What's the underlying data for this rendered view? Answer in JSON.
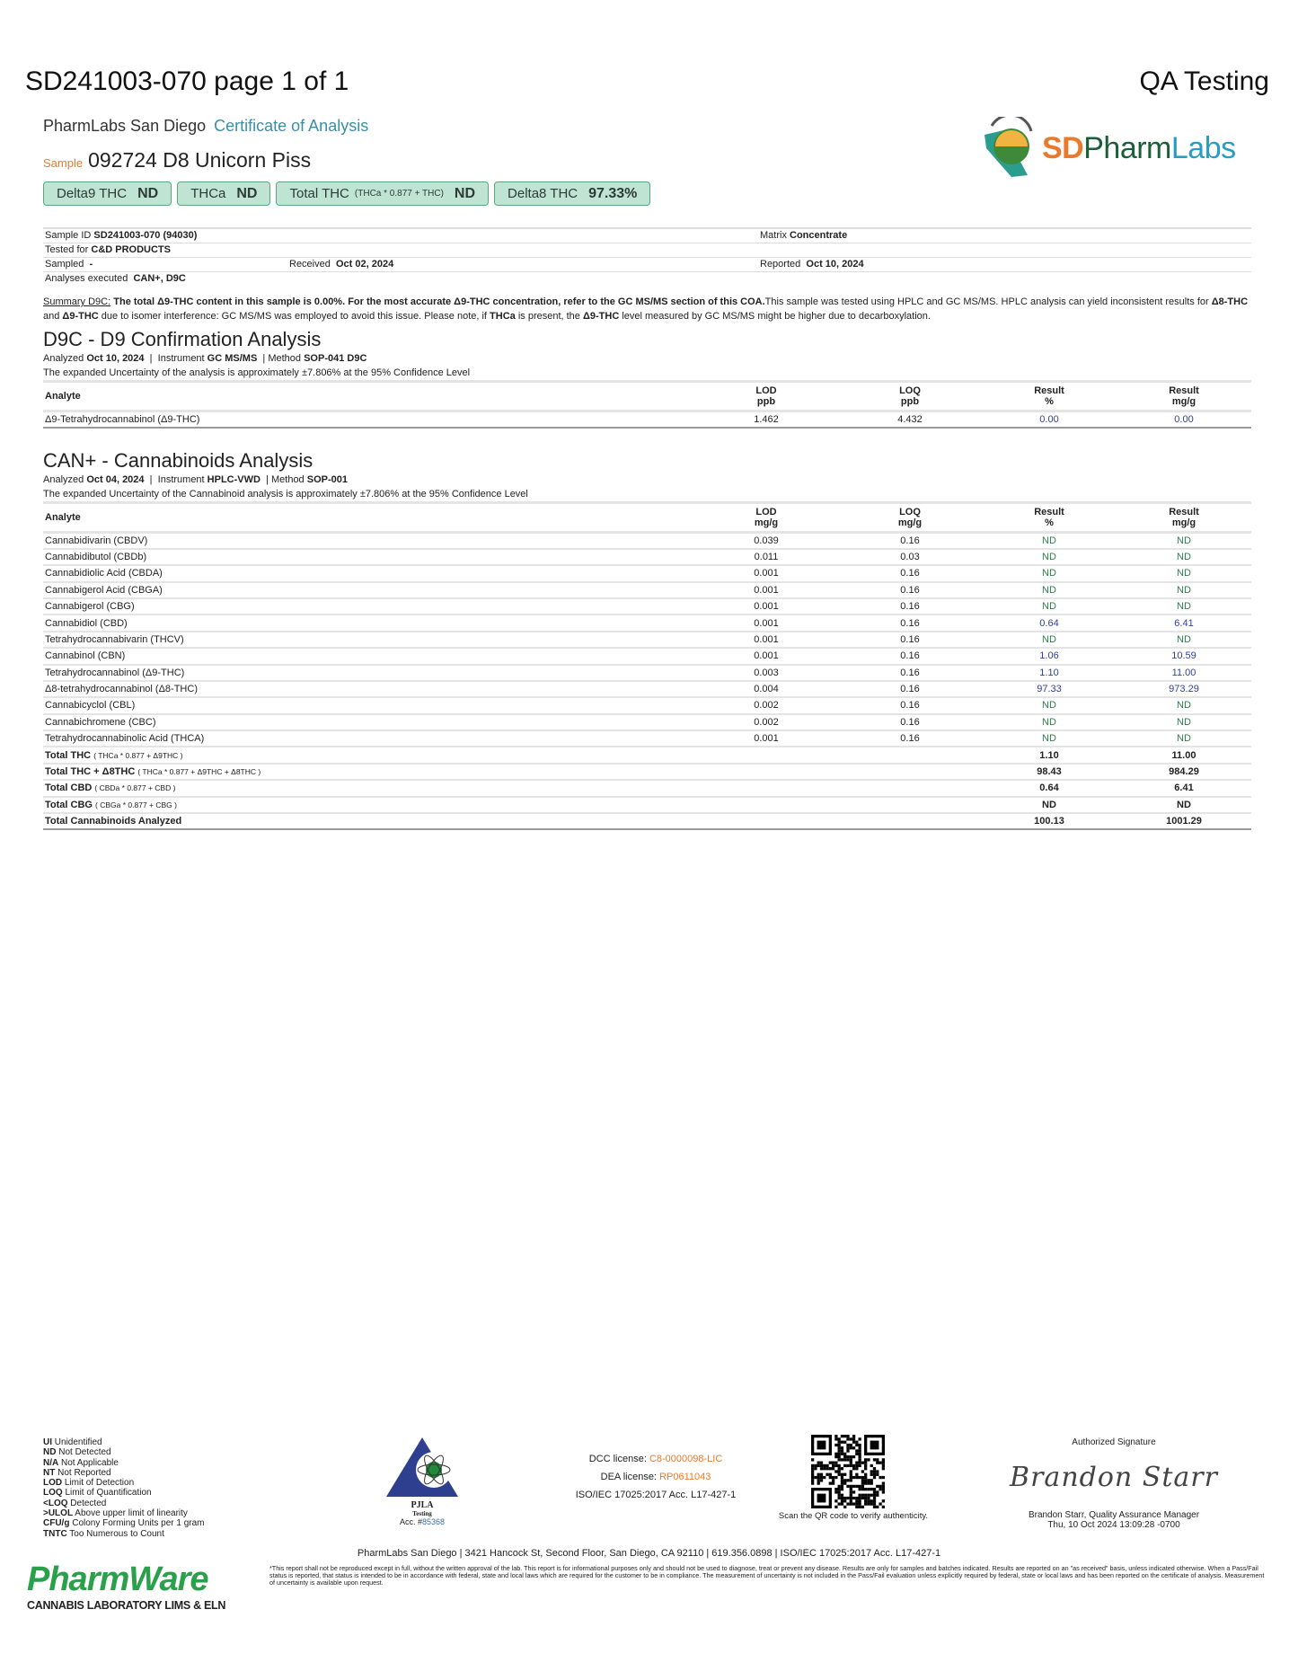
{
  "header": {
    "doc_title": "SD241003-070 page 1 of 1",
    "qa_label": "QA Testing"
  },
  "lab": {
    "name": "PharmLabs San Diego",
    "coa": "Certificate of Analysis",
    "logo_text": "SDPharmLabs",
    "logo_sd": "SD",
    "logo_pharm": "Pharm",
    "logo_labs": "Labs"
  },
  "sample": {
    "label": "Sample",
    "name": "092724 D8 Unicorn Piss"
  },
  "badges": [
    {
      "label": "Delta9 THC",
      "formula": "",
      "value": "ND"
    },
    {
      "label": "THCa",
      "formula": "",
      "value": "ND"
    },
    {
      "label": "Total THC",
      "formula": "(THCa * 0.877 + THC)",
      "value": "ND"
    },
    {
      "label": "Delta8 THC",
      "formula": "",
      "value": "97.33%"
    }
  ],
  "info": {
    "sample_id_label": "Sample ID",
    "sample_id": "SD241003-070 (94030)",
    "matrix_label": "Matrix",
    "matrix": "Concentrate",
    "tested_for_label": "Tested for",
    "tested_for": "C&D PRODUCTS",
    "sampled_label": "Sampled",
    "sampled": "-",
    "received_label": "Received",
    "received": "Oct 02, 2024",
    "reported_label": "Reported",
    "reported": "Oct 10, 2024",
    "analyses_label": "Analyses executed",
    "analyses": "CAN+, D9C"
  },
  "summary": {
    "label": "Summary D9C:",
    "bold": "The total Δ9-THC content in this sample is 0.00%. For the most accurate Δ9-THC concentration, refer to the GC MS/MS section of this COA.",
    "text1": "This sample was tested using HPLC and GC MS/MS. HPLC analysis can yield inconsistent results for ",
    "b1": "Δ8-THC",
    "t2": " and ",
    "b2": "Δ9-THC",
    "t3": " due to isomer interference: GC MS/MS was employed to avoid this issue. Please note, if ",
    "b3": "THCa",
    "t4": " is present, the ",
    "b4": "Δ9-THC",
    "t5": " level measured by GC MS/MS might be higher due to decarboxylation."
  },
  "d9c": {
    "title": "D9C - D9 Confirmation Analysis",
    "analyzed_label": "Analyzed",
    "analyzed": "Oct 10, 2024",
    "instrument_label": "Instrument",
    "instrument": "GC MS/MS",
    "method_label": "Method",
    "method": "SOP-041 D9C",
    "uncertainty": "The expanded Uncertainty of the analysis is approximately ±7.806% at the 95% Confidence Level",
    "headers": [
      "Analyte",
      "LOD\nppb",
      "LOQ\nppb",
      "Result\n%",
      "Result\nmg/g"
    ],
    "rows": [
      {
        "analyte": "Δ9-Tetrahydrocannabinol (Δ9-THC)",
        "lod": "1.462",
        "loq": "4.432",
        "pct": "0.00",
        "mg": "0.00"
      }
    ]
  },
  "can": {
    "title": "CAN+ - Cannabinoids Analysis",
    "analyzed_label": "Analyzed",
    "analyzed": "Oct 04, 2024",
    "instrument_label": "Instrument",
    "instrument": "HPLC-VWD",
    "method_label": "Method",
    "method": "SOP-001",
    "uncertainty": "The expanded Uncertainty of the Cannabinoid analysis is approximately ±7.806% at the 95% Confidence Level",
    "headers": [
      "Analyte",
      "LOD\nmg/g",
      "LOQ\nmg/g",
      "Result\n%",
      "Result\nmg/g"
    ],
    "rows": [
      {
        "analyte": "Cannabidivarin (CBDV)",
        "lod": "0.039",
        "loq": "0.16",
        "pct": "ND",
        "mg": "ND"
      },
      {
        "analyte": "Cannabidibutol (CBDb)",
        "lod": "0.011",
        "loq": "0.03",
        "pct": "ND",
        "mg": "ND"
      },
      {
        "analyte": "Cannabidiolic Acid (CBDA)",
        "lod": "0.001",
        "loq": "0.16",
        "pct": "ND",
        "mg": "ND"
      },
      {
        "analyte": "Cannabigerol Acid (CBGA)",
        "lod": "0.001",
        "loq": "0.16",
        "pct": "ND",
        "mg": "ND"
      },
      {
        "analyte": "Cannabigerol (CBG)",
        "lod": "0.001",
        "loq": "0.16",
        "pct": "ND",
        "mg": "ND"
      },
      {
        "analyte": "Cannabidiol (CBD)",
        "lod": "0.001",
        "loq": "0.16",
        "pct": "0.64",
        "mg": "6.41"
      },
      {
        "analyte": "Tetrahydrocannabivarin (THCV)",
        "lod": "0.001",
        "loq": "0.16",
        "pct": "ND",
        "mg": "ND"
      },
      {
        "analyte": "Cannabinol (CBN)",
        "lod": "0.001",
        "loq": "0.16",
        "pct": "1.06",
        "mg": "10.59"
      },
      {
        "analyte": "Tetrahydrocannabinol (Δ9-THC)",
        "lod": "0.003",
        "loq": "0.16",
        "pct": "1.10",
        "mg": "11.00"
      },
      {
        "analyte": "Δ8-tetrahydrocannabinol (Δ8-THC)",
        "lod": "0.004",
        "loq": "0.16",
        "pct": "97.33",
        "mg": "973.29"
      },
      {
        "analyte": "Cannabicyclol (CBL)",
        "lod": "0.002",
        "loq": "0.16",
        "pct": "ND",
        "mg": "ND"
      },
      {
        "analyte": "Cannabichromene (CBC)",
        "lod": "0.002",
        "loq": "0.16",
        "pct": "ND",
        "mg": "ND"
      },
      {
        "analyte": "Tetrahydrocannabinolic Acid (THCA)",
        "lod": "0.001",
        "loq": "0.16",
        "pct": "ND",
        "mg": "ND"
      }
    ],
    "totals": [
      {
        "label": "Total THC",
        "formula": "( THCa * 0.877 + Δ9THC )",
        "pct": "1.10",
        "mg": "11.00"
      },
      {
        "label": "Total THC + Δ8THC",
        "formula": "( THCa * 0.877 + Δ9THC + Δ8THC )",
        "pct": "98.43",
        "mg": "984.29"
      },
      {
        "label": "Total CBD",
        "formula": "( CBDa * 0.877 + CBD )",
        "pct": "0.64",
        "mg": "6.41"
      },
      {
        "label": "Total CBG",
        "formula": "( CBGa * 0.877 + CBG )",
        "pct": "ND",
        "mg": "ND"
      },
      {
        "label": "Total Cannabinoids Analyzed",
        "formula": "",
        "pct": "100.13",
        "mg": "1001.29"
      }
    ]
  },
  "legend": [
    {
      "abbr": "UI",
      "text": "Unidentified"
    },
    {
      "abbr": "ND",
      "text": "Not Detected"
    },
    {
      "abbr": "N/A",
      "text": "Not Applicable"
    },
    {
      "abbr": "NT",
      "text": "Not Reported"
    },
    {
      "abbr": "LOD",
      "text": "Limit of Detection"
    },
    {
      "abbr": "LOQ",
      "text": "Limit of Quantification"
    },
    {
      "abbr": "<LOQ",
      "text": "Detected"
    },
    {
      "abbr": ">ULOL",
      "text": "Above upper limit of linearity"
    },
    {
      "abbr": "CFU/g",
      "text": "Colony Forming Units per 1 gram"
    },
    {
      "abbr": "TNTC",
      "text": "Too Numerous to Count"
    }
  ],
  "pjla": {
    "name": "PJLA",
    "sub": "Testing",
    "acc_label": "Acc. #",
    "acc": "85368"
  },
  "licenses": {
    "dcc_label": "DCC license:",
    "dcc": "C8-0000098-LIC",
    "dea_label": "DEA license:",
    "dea": "RP0611043",
    "iso": "ISO/IEC 17025:2017 Acc. L17-427-1"
  },
  "qr": {
    "caption": "Scan the QR code to verify authenticity."
  },
  "signature": {
    "label": "Authorized Signature",
    "script": "Brandon Starr",
    "name": "Brandon Starr, Quality Assurance Manager",
    "date": "Thu, 10 Oct 2024 13:09:28 -0700"
  },
  "footer": {
    "address": "PharmLabs San Diego | 3421 Hancock St, Second Floor, San Diego, CA 92110 | 619.356.0898 | ISO/IEC 17025:2017 Acc. L17-427-1",
    "disclaimer": "*This report shall not be reproduced except in full, without the written approval of the lab. This report is for informational purposes only and should not be used to diagnose, treat or prevent any disease. Results are only for samples and batches indicated. Results are reported on an \"as received\" basis, unless indicated otherwise. When a Pass/Fail status is reported, that status is intended to be in accordance with federal, state and local laws which are required for the customer to be in compliance. The measurement of uncertainty is not included in the Pass/Fail evaluation unless explicitly required by federal, state or local laws and has been reported on the certificate of analysis. Measurement of uncertainty is available upon request.",
    "pharmware_logo": "PharmWare",
    "pharmware_tag": "CANNABIS LABORATORY LIMS & ELN"
  },
  "colors": {
    "accent_teal": "#3a8fa8",
    "accent_orange": "#e87a2e",
    "badge_bg": "#bfe4d4",
    "nd_green": "#2e7d4f",
    "value_blue": "#2e3fa0"
  }
}
